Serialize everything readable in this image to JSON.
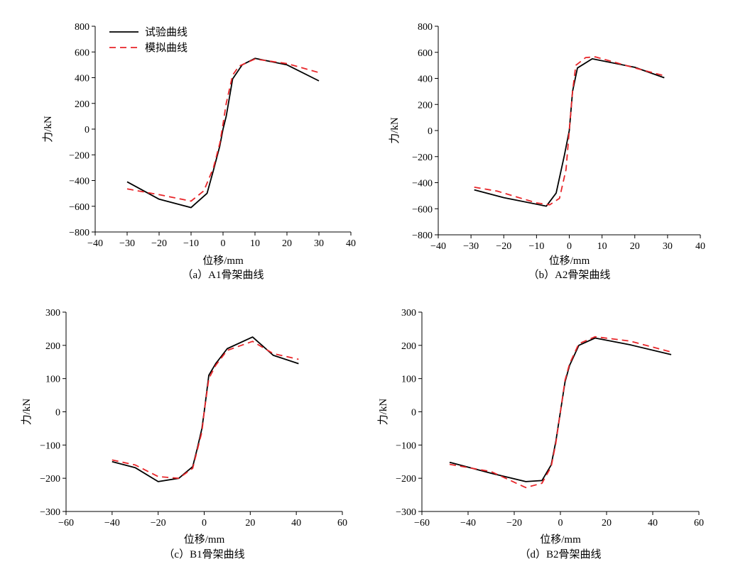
{
  "legend": {
    "test_label": "试验曲线",
    "sim_label": "模拟曲线",
    "test_color": "#000000",
    "sim_color": "#e8262a",
    "placement": "top-left of panel (a)"
  },
  "chart_data": [
    {
      "type": "line",
      "caption": "（a）A1骨架曲线",
      "xlabel": "位移/mm",
      "ylabel": "力/kN",
      "xlim": [
        -40,
        40
      ],
      "ylim": [
        -800,
        800
      ],
      "xticks": [
        -40,
        -30,
        -20,
        -10,
        0,
        10,
        20,
        30,
        40
      ],
      "yticks": [
        -800,
        -600,
        -400,
        -200,
        0,
        200,
        400,
        600,
        800
      ],
      "xtick_labels": [
        "−40",
        "−30",
        "−20",
        "−10",
        "0",
        "10",
        "20",
        "30",
        "40"
      ],
      "ytick_labels": [
        "−800",
        "−600",
        "−400",
        "−200",
        "0",
        "200",
        "400",
        "600",
        "800"
      ],
      "grid": false,
      "series": [
        {
          "name": "试验曲线",
          "style": "solid",
          "x": [
            -30,
            -20,
            -10,
            -5,
            -3,
            -1,
            0,
            1,
            3,
            6,
            10,
            20,
            30
          ],
          "y": [
            -410,
            -545,
            -610,
            -500,
            -320,
            -130,
            0,
            100,
            390,
            500,
            550,
            500,
            375
          ]
        },
        {
          "name": "模拟曲线",
          "style": "dashed",
          "x": [
            -30,
            -20,
            -10,
            -6,
            -3,
            -1,
            0,
            1,
            3,
            5,
            10,
            20,
            30
          ],
          "y": [
            -465,
            -510,
            -560,
            -480,
            -300,
            -110,
            40,
            200,
            420,
            490,
            545,
            510,
            440
          ]
        }
      ]
    },
    {
      "type": "line",
      "caption": "（b）A2骨架曲线",
      "xlabel": "位移/mm",
      "ylabel": "力/kN",
      "xlim": [
        -40,
        40
      ],
      "ylim": [
        -800,
        800
      ],
      "xticks": [
        -40,
        -30,
        -20,
        -10,
        0,
        10,
        20,
        30,
        40
      ],
      "yticks": [
        -800,
        -600,
        -400,
        -200,
        0,
        200,
        400,
        600,
        800
      ],
      "xtick_labels": [
        "−40",
        "−30",
        "−20",
        "−10",
        "0",
        "10",
        "20",
        "30",
        "40"
      ],
      "ytick_labels": [
        "−800",
        "−600",
        "−400",
        "−200",
        "0",
        "200",
        "400",
        "600",
        "800"
      ],
      "grid": false,
      "series": [
        {
          "name": "试验曲线",
          "style": "solid",
          "x": [
            -29,
            -20,
            -7,
            -4,
            -1.5,
            0,
            1,
            2.5,
            7,
            20,
            29
          ],
          "y": [
            -455,
            -515,
            -580,
            -480,
            -190,
            0,
            300,
            480,
            550,
            485,
            405
          ]
        },
        {
          "name": "模拟曲线",
          "style": "dashed",
          "x": [
            -29,
            -22,
            -10,
            -6,
            -3,
            -1,
            0,
            1,
            2,
            5,
            8,
            20,
            29
          ],
          "y": [
            -435,
            -465,
            -555,
            -570,
            -520,
            -300,
            0,
            300,
            500,
            560,
            565,
            480,
            420
          ]
        }
      ]
    },
    {
      "type": "line",
      "caption": "（c）B1骨架曲线",
      "xlabel": "位移/mm",
      "ylabel": "力/kN",
      "xlim": [
        -60,
        60
      ],
      "ylim": [
        -300,
        300
      ],
      "xticks": [
        -60,
        -40,
        -20,
        0,
        20,
        40,
        60
      ],
      "yticks": [
        -300,
        -200,
        -100,
        0,
        100,
        200,
        300
      ],
      "xtick_labels": [
        "−60",
        "−40",
        "−20",
        "0",
        "20",
        "40",
        "60"
      ],
      "ytick_labels": [
        "−300",
        "−200",
        "−100",
        "0",
        "100",
        "200",
        "300"
      ],
      "grid": false,
      "series": [
        {
          "name": "试验曲线",
          "style": "solid",
          "x": [
            -40,
            -30,
            -20,
            -11,
            -5,
            -3,
            -1,
            0,
            2,
            5,
            10,
            21,
            30,
            41
          ],
          "y": [
            -150,
            -168,
            -210,
            -200,
            -165,
            -110,
            -50,
            0,
            110,
            145,
            190,
            225,
            170,
            145
          ]
        },
        {
          "name": "模拟曲线",
          "style": "dashed",
          "x": [
            -40,
            -30,
            -20,
            -11,
            -5,
            -3,
            -1,
            0,
            2,
            5,
            10,
            21,
            30,
            41
          ],
          "y": [
            -145,
            -160,
            -195,
            -200,
            -170,
            -115,
            -60,
            0,
            100,
            140,
            185,
            212,
            175,
            158
          ]
        }
      ]
    },
    {
      "type": "line",
      "caption": "（d）B2骨架曲线",
      "xlabel": "位移/mm",
      "ylabel": "力/kN",
      "xlim": [
        -60,
        60
      ],
      "ylim": [
        -300,
        300
      ],
      "xticks": [
        -60,
        -40,
        -20,
        0,
        20,
        40,
        60
      ],
      "yticks": [
        -300,
        -200,
        -100,
        0,
        100,
        200,
        300
      ],
      "xtick_labels": [
        "−60",
        "−40",
        "−20",
        "0",
        "20",
        "40",
        "60"
      ],
      "ytick_labels": [
        "−300",
        "−200",
        "−100",
        "0",
        "100",
        "200",
        "300"
      ],
      "grid": false,
      "series": [
        {
          "name": "试验曲线",
          "style": "solid",
          "x": [
            -48,
            -30,
            -15,
            -8,
            -4,
            -2,
            0,
            2,
            4,
            8,
            15,
            30,
            48
          ],
          "y": [
            -152,
            -185,
            -210,
            -207,
            -160,
            -90,
            0,
            90,
            140,
            200,
            222,
            202,
            172
          ]
        },
        {
          "name": "模拟曲线",
          "style": "dashed",
          "x": [
            -48,
            -30,
            -15,
            -8,
            -4,
            -2,
            0,
            2,
            4,
            8,
            15,
            30,
            48
          ],
          "y": [
            -158,
            -180,
            -228,
            -215,
            -165,
            -95,
            0,
            95,
            145,
            205,
            226,
            213,
            180
          ]
        }
      ]
    }
  ]
}
